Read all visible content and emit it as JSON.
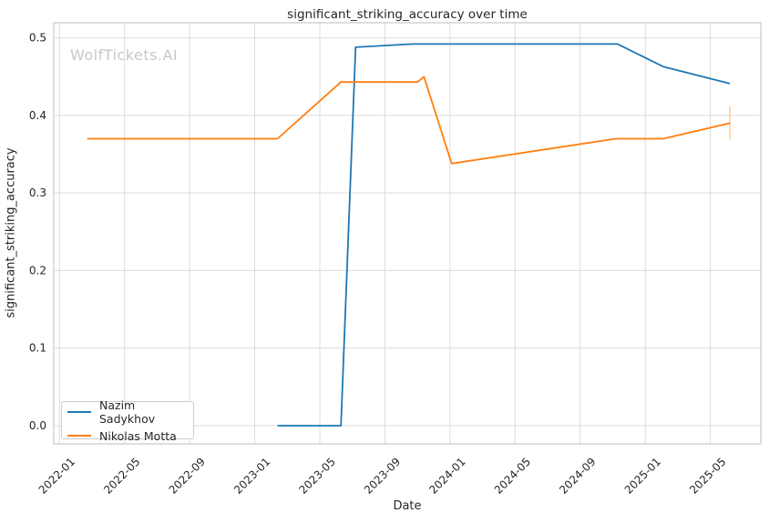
{
  "title": "significant_striking_accuracy over time",
  "watermark": "WolfTickets.AI",
  "axes": {
    "xlabel": "Date",
    "ylabel": "significant_striking_accuracy"
  },
  "legend": {
    "position": "lower-left",
    "entries": [
      {
        "label": "Nazim Sadykhov",
        "color": "#1f77b4"
      },
      {
        "label": "Nikolas Motta",
        "color": "#ff7f0e"
      }
    ]
  },
  "style": {
    "grid_color": "#dcdcdc",
    "frame_color": "#c8c8c8",
    "text_color": "#262626",
    "watermark_color": "#c8c8c8",
    "background": "#ffffff"
  },
  "chart_data": {
    "type": "line",
    "title": "significant_striking_accuracy over time",
    "xlabel": "Date",
    "ylabel": "significant_striking_accuracy",
    "grid": true,
    "legend_position": "lower-left",
    "x_axis": {
      "unit": "months since 2022-01",
      "xlim_months": [
        -0.35,
        43.1
      ],
      "ticks": [
        {
          "m": 0,
          "label": "2022-01"
        },
        {
          "m": 4,
          "label": "2022-05"
        },
        {
          "m": 8,
          "label": "2022-09"
        },
        {
          "m": 12,
          "label": "2023-01"
        },
        {
          "m": 16,
          "label": "2023-05"
        },
        {
          "m": 20,
          "label": "2023-09"
        },
        {
          "m": 24,
          "label": "2024-01"
        },
        {
          "m": 28,
          "label": "2024-05"
        },
        {
          "m": 32,
          "label": "2024-09"
        },
        {
          "m": 36,
          "label": "2025-01"
        },
        {
          "m": 40,
          "label": "2025-05"
        }
      ]
    },
    "y_axis": {
      "ticks": [
        {
          "v": 0.0,
          "label": "0.0"
        },
        {
          "v": 0.1,
          "label": "0.1"
        },
        {
          "v": 0.2,
          "label": "0.2"
        },
        {
          "v": 0.3,
          "label": "0.3"
        },
        {
          "v": 0.4,
          "label": "0.4"
        },
        {
          "v": 0.5,
          "label": "0.5"
        }
      ],
      "ylim": [
        -0.0235,
        0.5195
      ]
    },
    "series": [
      {
        "name": "Nazim Sadykhov",
        "color": "#1f77b4",
        "points": [
          {
            "date": "2023-02",
            "m": 13.4,
            "value": 0.0
          },
          {
            "date": "2023-06",
            "m": 17.3,
            "value": 0.0
          },
          {
            "date": "2023-07",
            "m": 18.2,
            "value": 0.488
          },
          {
            "date": "2023-10",
            "m": 21.7,
            "value": 0.492
          },
          {
            "date": "2024-11",
            "m": 34.3,
            "value": 0.492
          },
          {
            "date": "2025-02",
            "m": 37.1,
            "value": 0.463
          },
          {
            "date": "2025-06",
            "m": 41.2,
            "value": 0.441
          }
        ],
        "error_bars": []
      },
      {
        "name": "Nikolas Motta",
        "color": "#ff7f0e",
        "points": [
          {
            "date": "2022-02",
            "m": 1.7,
            "value": 0.37
          },
          {
            "date": "2023-02",
            "m": 13.4,
            "value": 0.37
          },
          {
            "date": "2023-06",
            "m": 17.3,
            "value": 0.443
          },
          {
            "date": "2023-11",
            "m": 22.0,
            "value": 0.443
          },
          {
            "date": "2023-11",
            "m": 22.4,
            "value": 0.45
          },
          {
            "date": "2024-01",
            "m": 24.1,
            "value": 0.338
          },
          {
            "date": "2024-11",
            "m": 34.2,
            "value": 0.37
          },
          {
            "date": "2025-02",
            "m": 37.1,
            "value": 0.37
          },
          {
            "date": "2025-06",
            "m": 41.2,
            "value": 0.39
          }
        ],
        "error_bars": [
          {
            "date": "2025-06",
            "m": 41.2,
            "value": 0.39,
            "low": 0.369,
            "high": 0.412
          }
        ]
      }
    ]
  }
}
